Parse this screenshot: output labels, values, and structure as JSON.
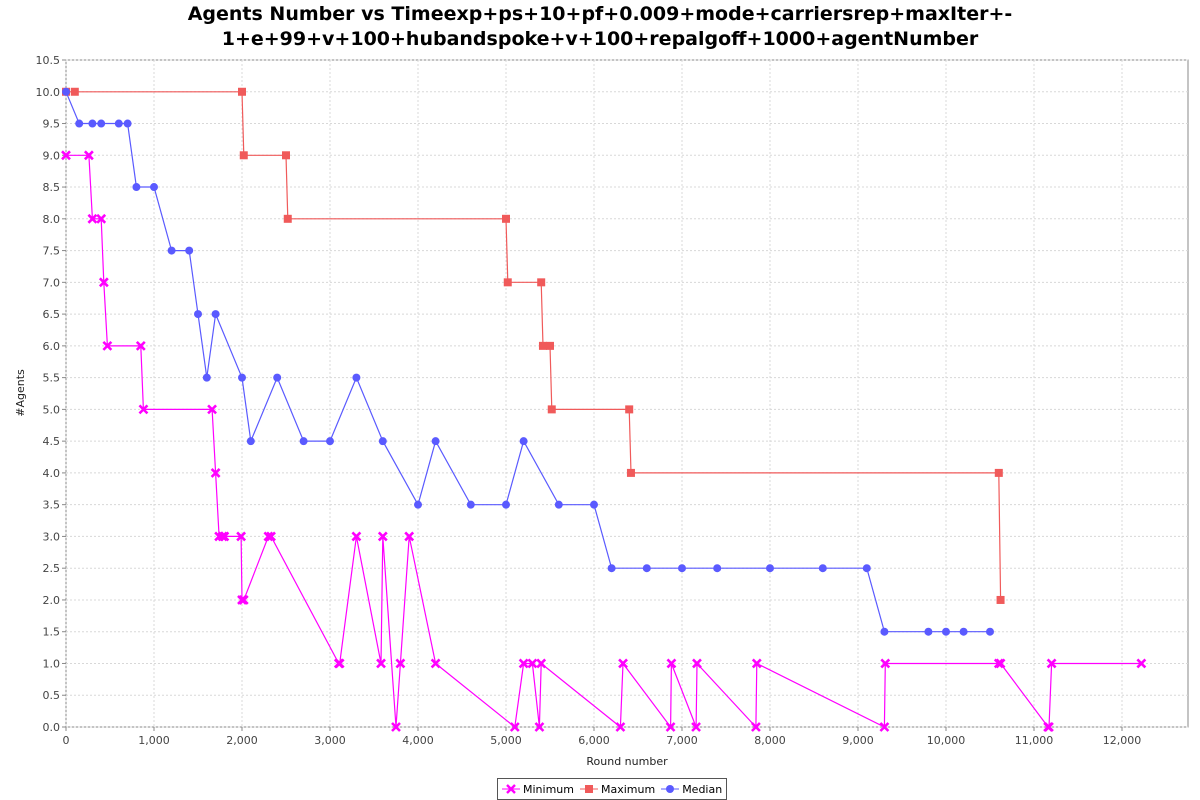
{
  "chart_data": {
    "type": "line",
    "title_lines": [
      "Agents Number vs Timeexp+ps+10+pf+0.009+mode+carriersrep+maxIter+-",
      "1+e+99+v+100+hubandspoke+v+100+repalgoff+1000+agentNumber"
    ],
    "xlabel": "Round number",
    "ylabel": "#Agents",
    "xlim": [
      0,
      12750
    ],
    "ylim": [
      0,
      10.5
    ],
    "x_ticks": [
      0,
      1000,
      2000,
      3000,
      4000,
      5000,
      6000,
      7000,
      8000,
      9000,
      10000,
      11000,
      12000
    ],
    "x_tick_labels": [
      "0",
      "1,000",
      "2,000",
      "3,000",
      "4,000",
      "5,000",
      "6,000",
      "7,000",
      "8,000",
      "9,000",
      "10,000",
      "11,000",
      "12,000"
    ],
    "y_ticks": [
      0,
      0.5,
      1,
      1.5,
      2,
      2.5,
      3,
      3.5,
      4,
      4.5,
      5,
      5.5,
      6,
      6.5,
      7,
      7.5,
      8,
      8.5,
      9,
      9.5,
      10,
      10.5
    ],
    "y_tick_labels": [
      "0.0",
      "0.5",
      "1.0",
      "1.5",
      "2.0",
      "2.5",
      "3.0",
      "3.5",
      "4.0",
      "4.5",
      "5.0",
      "5.5",
      "6.0",
      "6.5",
      "7.0",
      "7.5",
      "8.0",
      "8.5",
      "9.0",
      "9.5",
      "10.0",
      "10.5"
    ],
    "grid": true,
    "legend_position": "bottom-center",
    "series": [
      {
        "name": "Minimum",
        "color": "#ff00ff",
        "marker": "cross",
        "x": [
          0,
          260,
          300,
          400,
          430,
          470,
          850,
          880,
          1660,
          1700,
          1740,
          1780,
          1800,
          1990,
          2000,
          2020,
          2300,
          2330,
          3100,
          3110,
          3300,
          3580,
          3600,
          3750,
          3800,
          3900,
          4200,
          5100,
          5200,
          5300,
          5380,
          5400,
          6300,
          6330,
          6870,
          6880,
          7160,
          7170,
          7840,
          7850,
          9300,
          9310,
          10600,
          10620,
          11160,
          11170,
          11200,
          12220
        ],
        "y": [
          9,
          9,
          8,
          8,
          7,
          6,
          6,
          5,
          5,
          4,
          3,
          3,
          3,
          3,
          2,
          2,
          3,
          3,
          1,
          1,
          3,
          1,
          3,
          0,
          1,
          3,
          1,
          0,
          1,
          1,
          0,
          1,
          0,
          1,
          0,
          1,
          0,
          1,
          0,
          1,
          0,
          1,
          1,
          1,
          0,
          0,
          1,
          1
        ]
      },
      {
        "name": "Maximum",
        "color": "#f05a5a",
        "marker": "square",
        "x": [
          0,
          100,
          2000,
          2020,
          2500,
          2520,
          5000,
          5020,
          5400,
          5420,
          5500,
          5520,
          6400,
          6420,
          10600,
          10620
        ],
        "y": [
          10,
          10,
          10,
          9,
          9,
          8,
          8,
          7,
          7,
          6,
          6,
          5,
          5,
          4,
          4,
          2
        ]
      },
      {
        "name": "Median",
        "color": "#5a5aff",
        "marker": "circle",
        "x": [
          0,
          150,
          300,
          400,
          600,
          700,
          800,
          1000,
          1200,
          1400,
          1500,
          1600,
          1700,
          2000,
          2100,
          2400,
          2700,
          3000,
          3300,
          3600,
          4000,
          4200,
          4600,
          5000,
          5200,
          5600,
          6000,
          6200,
          6600,
          7000,
          7400,
          8000,
          8600,
          9100,
          9300,
          9800,
          10000,
          10200,
          10500
        ],
        "y": [
          10,
          9.5,
          9.5,
          9.5,
          9.5,
          9.5,
          8.5,
          8.5,
          7.5,
          7.5,
          6.5,
          5.5,
          6.5,
          5.5,
          4.5,
          5.5,
          4.5,
          4.5,
          5.5,
          4.5,
          3.5,
          4.5,
          3.5,
          3.5,
          4.5,
          3.5,
          3.5,
          2.5,
          2.5,
          2.5,
          2.5,
          2.5,
          2.5,
          2.5,
          1.5,
          1.5,
          1.5,
          1.5,
          1.5
        ]
      }
    ]
  }
}
